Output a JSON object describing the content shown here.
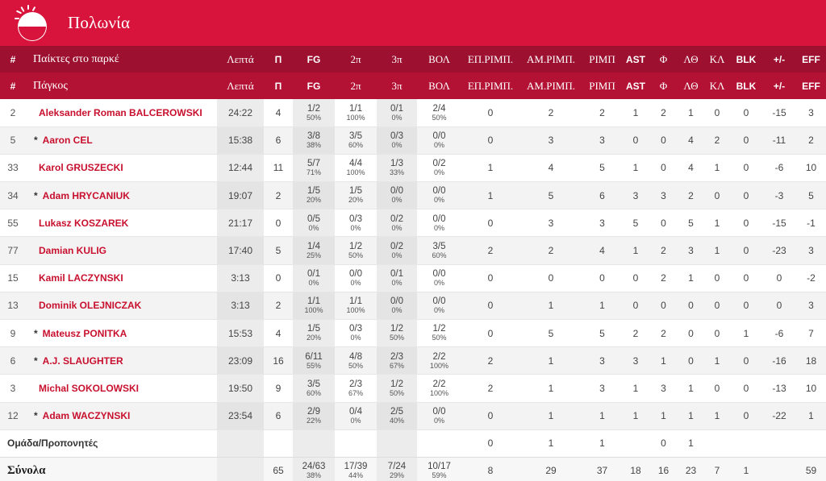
{
  "team": {
    "name": "Πολωνία",
    "colors": {
      "primary": "#d8143c",
      "header_dark": "#9d1030",
      "name_text": "#c8102e"
    },
    "flag_icon": "poland-flag-icon"
  },
  "header_on_court": [
    "#",
    "Παίκτες στο παρκέ",
    "Λεπτά",
    "Π",
    "FG",
    "2π",
    "3π",
    "ΒΟΛ",
    "ΕΠ.ΡΙΜΠ.",
    "ΑΜ.ΡΙΜΠ.",
    "ΡΙΜΠ",
    "AST",
    "Φ",
    "ΛΘ",
    "ΚΛ",
    "BLK",
    "+/-",
    "EFF"
  ],
  "header_bench": [
    "#",
    "Πάγκος",
    "Λεπτά",
    "Π",
    "FG",
    "2π",
    "3π",
    "ΒΟΛ",
    "ΕΠ.ΡΙΜΠ.",
    "ΑΜ.ΡΙΜΠ.",
    "ΡΙΜΠ",
    "AST",
    "Φ",
    "ΛΘ",
    "ΚΛ",
    "BLK",
    "+/-",
    "EFF"
  ],
  "players": [
    {
      "no": "2",
      "star": "",
      "name": "Aleksander Roman BALCEROWSKI",
      "min": "24:22",
      "pts": "4",
      "fg": "1/2",
      "fg_pct": "50%",
      "p2": "1/1",
      "p2_pct": "100%",
      "p3": "0/1",
      "p3_pct": "0%",
      "ft": "2/4",
      "ft_pct": "50%",
      "oreb": "0",
      "dreb": "2",
      "reb": "2",
      "ast": "1",
      "pf": "2",
      "to": "1",
      "st": "0",
      "blk": "0",
      "pm": "-15",
      "eff": "3"
    },
    {
      "no": "5",
      "star": "*",
      "name": "Aaron CEL",
      "min": "15:38",
      "pts": "6",
      "fg": "3/8",
      "fg_pct": "38%",
      "p2": "3/5",
      "p2_pct": "60%",
      "p3": "0/3",
      "p3_pct": "0%",
      "ft": "0/0",
      "ft_pct": "0%",
      "oreb": "0",
      "dreb": "3",
      "reb": "3",
      "ast": "0",
      "pf": "0",
      "to": "4",
      "st": "2",
      "blk": "0",
      "pm": "-11",
      "eff": "2"
    },
    {
      "no": "33",
      "star": "",
      "name": "Karol GRUSZECKI",
      "min": "12:44",
      "pts": "11",
      "fg": "5/7",
      "fg_pct": "71%",
      "p2": "4/4",
      "p2_pct": "100%",
      "p3": "1/3",
      "p3_pct": "33%",
      "ft": "0/2",
      "ft_pct": "0%",
      "oreb": "1",
      "dreb": "4",
      "reb": "5",
      "ast": "1",
      "pf": "0",
      "to": "4",
      "st": "1",
      "blk": "0",
      "pm": "-6",
      "eff": "10"
    },
    {
      "no": "34",
      "star": "*",
      "name": "Adam HRYCANIUK",
      "min": "19:07",
      "pts": "2",
      "fg": "1/5",
      "fg_pct": "20%",
      "p2": "1/5",
      "p2_pct": "20%",
      "p3": "0/0",
      "p3_pct": "0%",
      "ft": "0/0",
      "ft_pct": "0%",
      "oreb": "1",
      "dreb": "5",
      "reb": "6",
      "ast": "3",
      "pf": "3",
      "to": "2",
      "st": "0",
      "blk": "0",
      "pm": "-3",
      "eff": "5"
    },
    {
      "no": "55",
      "star": "",
      "name": "Lukasz KOSZAREK",
      "min": "21:17",
      "pts": "0",
      "fg": "0/5",
      "fg_pct": "0%",
      "p2": "0/3",
      "p2_pct": "0%",
      "p3": "0/2",
      "p3_pct": "0%",
      "ft": "0/0",
      "ft_pct": "0%",
      "oreb": "0",
      "dreb": "3",
      "reb": "3",
      "ast": "5",
      "pf": "0",
      "to": "5",
      "st": "1",
      "blk": "0",
      "pm": "-15",
      "eff": "-1"
    },
    {
      "no": "77",
      "star": "",
      "name": "Damian KULIG",
      "min": "17:40",
      "pts": "5",
      "fg": "1/4",
      "fg_pct": "25%",
      "p2": "1/2",
      "p2_pct": "50%",
      "p3": "0/2",
      "p3_pct": "0%",
      "ft": "3/5",
      "ft_pct": "60%",
      "oreb": "2",
      "dreb": "2",
      "reb": "4",
      "ast": "1",
      "pf": "2",
      "to": "3",
      "st": "1",
      "blk": "0",
      "pm": "-23",
      "eff": "3"
    },
    {
      "no": "15",
      "star": "",
      "name": "Kamil LACZYNSKI",
      "min": "3:13",
      "pts": "0",
      "fg": "0/1",
      "fg_pct": "0%",
      "p2": "0/0",
      "p2_pct": "0%",
      "p3": "0/1",
      "p3_pct": "0%",
      "ft": "0/0",
      "ft_pct": "0%",
      "oreb": "0",
      "dreb": "0",
      "reb": "0",
      "ast": "0",
      "pf": "2",
      "to": "1",
      "st": "0",
      "blk": "0",
      "pm": "0",
      "eff": "-2"
    },
    {
      "no": "13",
      "star": "",
      "name": "Dominik OLEJNICZAK",
      "min": "3:13",
      "pts": "2",
      "fg": "1/1",
      "fg_pct": "100%",
      "p2": "1/1",
      "p2_pct": "100%",
      "p3": "0/0",
      "p3_pct": "0%",
      "ft": "0/0",
      "ft_pct": "0%",
      "oreb": "0",
      "dreb": "1",
      "reb": "1",
      "ast": "0",
      "pf": "0",
      "to": "0",
      "st": "0",
      "blk": "0",
      "pm": "0",
      "eff": "3"
    },
    {
      "no": "9",
      "star": "*",
      "name": "Mateusz PONITKA",
      "min": "15:53",
      "pts": "4",
      "fg": "1/5",
      "fg_pct": "20%",
      "p2": "0/3",
      "p2_pct": "0%",
      "p3": "1/2",
      "p3_pct": "50%",
      "ft": "1/2",
      "ft_pct": "50%",
      "oreb": "0",
      "dreb": "5",
      "reb": "5",
      "ast": "2",
      "pf": "2",
      "to": "0",
      "st": "0",
      "blk": "1",
      "pm": "-6",
      "eff": "7"
    },
    {
      "no": "6",
      "star": "*",
      "name": "A.J. SLAUGHTER",
      "min": "23:09",
      "pts": "16",
      "fg": "6/11",
      "fg_pct": "55%",
      "p2": "4/8",
      "p2_pct": "50%",
      "p3": "2/3",
      "p3_pct": "67%",
      "ft": "2/2",
      "ft_pct": "100%",
      "oreb": "2",
      "dreb": "1",
      "reb": "3",
      "ast": "3",
      "pf": "1",
      "to": "0",
      "st": "1",
      "blk": "0",
      "pm": "-16",
      "eff": "18"
    },
    {
      "no": "3",
      "star": "",
      "name": "Michal SOKOLOWSKI",
      "min": "19:50",
      "pts": "9",
      "fg": "3/5",
      "fg_pct": "60%",
      "p2": "2/3",
      "p2_pct": "67%",
      "p3": "1/2",
      "p3_pct": "50%",
      "ft": "2/2",
      "ft_pct": "100%",
      "oreb": "2",
      "dreb": "1",
      "reb": "3",
      "ast": "1",
      "pf": "3",
      "to": "1",
      "st": "0",
      "blk": "0",
      "pm": "-13",
      "eff": "10"
    },
    {
      "no": "12",
      "star": "*",
      "name": "Adam WACZYNSKI",
      "min": "23:54",
      "pts": "6",
      "fg": "2/9",
      "fg_pct": "22%",
      "p2": "0/4",
      "p2_pct": "0%",
      "p3": "2/5",
      "p3_pct": "40%",
      "ft": "0/0",
      "ft_pct": "0%",
      "oreb": "0",
      "dreb": "1",
      "reb": "1",
      "ast": "1",
      "pf": "1",
      "to": "1",
      "st": "1",
      "blk": "0",
      "pm": "-22",
      "eff": "1"
    }
  ],
  "team_row": {
    "label": "Ομάδα/Προπονητές",
    "oreb": "0",
    "dreb": "1",
    "reb": "1",
    "pf": "0",
    "to": "1"
  },
  "totals": {
    "label": "Σύνολα",
    "pts": "65",
    "fg": "24/63",
    "fg_pct": "38%",
    "p2": "17/39",
    "p2_pct": "44%",
    "p3": "7/24",
    "p3_pct": "29%",
    "ft": "10/17",
    "ft_pct": "59%",
    "oreb": "8",
    "dreb": "29",
    "reb": "37",
    "ast": "18",
    "pf": "16",
    "to": "23",
    "st": "7",
    "blk": "1",
    "eff": "59"
  }
}
